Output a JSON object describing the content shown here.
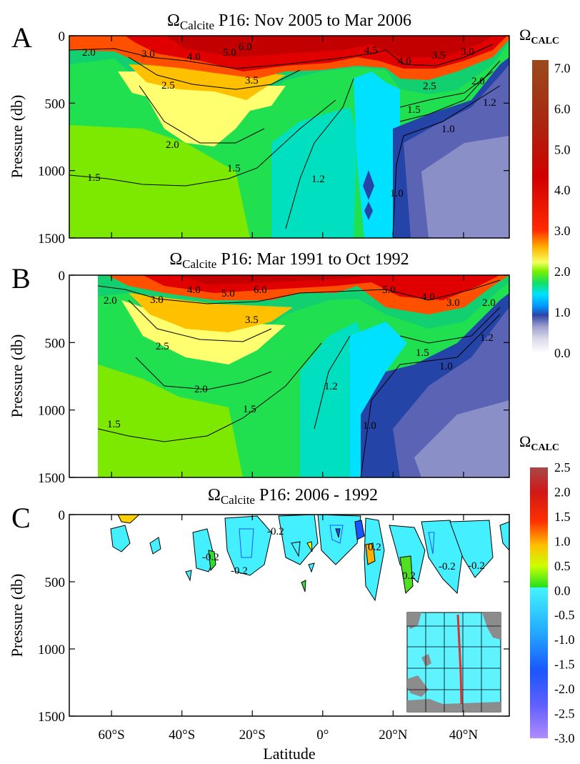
{
  "panel_labels": [
    "A",
    "B",
    "C"
  ],
  "x_label": "Latitude",
  "y_label": "Pressure (db)",
  "chart_data": [
    {
      "type": "heatmap",
      "title_symbol": "Ω",
      "title_sub": "Calcite",
      "title_rest": " P16: Nov 2005 to Mar 2006",
      "xlabel": "",
      "ylabel": "Pressure (db)",
      "xlim": [
        -72,
        53
      ],
      "ylim": [
        1500,
        0
      ],
      "y_ticks": [
        "0",
        "500",
        "1000",
        "1500"
      ],
      "x_ticks": [
        -60,
        -40,
        -20,
        0,
        20,
        40
      ],
      "contour_labels": [
        "2.0",
        "3.0",
        "4.0",
        "5.0",
        "6.0",
        "4.5",
        "4.0",
        "3.5",
        "3.0",
        "2.5",
        "3.5",
        "2.5",
        "2.0",
        "1.5",
        "1.2",
        "1.0",
        "2.0",
        "1.5",
        "1.5",
        "1.2",
        "1.0"
      ]
    },
    {
      "type": "heatmap",
      "title_symbol": "Ω",
      "title_sub": "Calcite",
      "title_rest": " P16: Mar 1991 to Oct 1992",
      "xlabel": "",
      "ylabel": "Pressure (db)",
      "xlim": [
        -72,
        53
      ],
      "ylim": [
        1500,
        0
      ],
      "y_ticks": [
        "0",
        "500",
        "1000",
        "1500"
      ],
      "x_ticks": [
        -60,
        -40,
        -20,
        0,
        20,
        40
      ],
      "contour_labels": [
        "2.0",
        "3.0",
        "4.0",
        "5.0",
        "6.0",
        "5.0",
        "4.0",
        "3.0",
        "2.0",
        "3.5",
        "2.5",
        "2.0",
        "1.5",
        "1.5",
        "1.2",
        "1.5",
        "1.2",
        "1.0",
        "1.0"
      ]
    },
    {
      "type": "heatmap",
      "title_symbol": "Ω",
      "title_sub": "Calcite",
      "title_rest": " P16: 2006 - 1992",
      "xlabel": "Latitude",
      "ylabel": "Pressure (db)",
      "xlim": [
        -72,
        53
      ],
      "ylim": [
        1500,
        0
      ],
      "y_ticks": [
        "0",
        "500",
        "1000",
        "1500"
      ],
      "x_ticks": [
        -60,
        -40,
        -20,
        0,
        20,
        40
      ],
      "x_tick_labels": [
        "60°S",
        "40°S",
        "20°S",
        "0°",
        "20°N",
        "40°N"
      ],
      "contour_labels": [
        "-0.2",
        "-0.2",
        "-0.2",
        "0.2",
        "0.2",
        "-0.2",
        "-0.2"
      ]
    }
  ],
  "colorbar_top": {
    "title_symbol": "Ω",
    "title_sub": "CALC",
    "ticks": [
      "7.0",
      "6.0",
      "5.0",
      "4.0",
      "3.0",
      "2.0",
      "1.0",
      "0.0"
    ],
    "range": [
      0,
      7.2
    ]
  },
  "colorbar_bottom": {
    "title_symbol": "Ω",
    "title_sub": "CALC",
    "ticks": [
      "2.5",
      "2.0",
      "1.5",
      "1.0",
      "0.5",
      "0.0",
      "-0.5",
      "-1.0",
      "-1.5",
      "-2.0",
      "-2.5",
      "-3.0"
    ],
    "range": [
      -3.0,
      2.5
    ]
  },
  "colors": {
    "ocean_inset": "#5ff2ff",
    "land_inset": "#8c8c8c",
    "track_inset": "#e03030",
    "frame": "#000000"
  }
}
